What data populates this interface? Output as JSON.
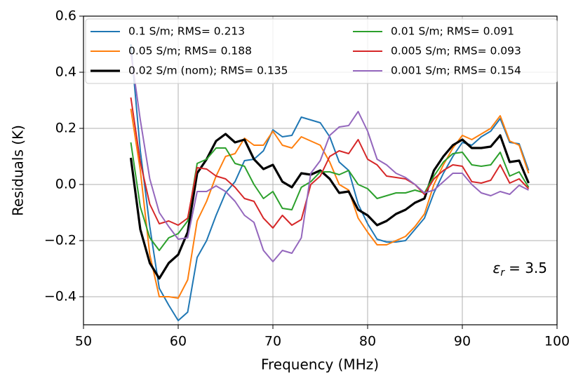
{
  "chart_data": {
    "type": "line",
    "xlabel": "Frequency (MHz)",
    "ylabel": "Residuals (K)",
    "annotation": {
      "symbol": "ε",
      "subscript": "r",
      "text": "= 3.5"
    },
    "xlim": [
      50,
      100
    ],
    "xticks": [
      50,
      60,
      70,
      80,
      90,
      100
    ],
    "ylim": [
      -0.5,
      0.6
    ],
    "yticks": [
      {
        "value": -0.4,
        "label": "−0.4"
      },
      {
        "value": -0.2,
        "label": "−0.2"
      },
      {
        "value": 0,
        "label": "0.0"
      },
      0.2,
      0.4,
      0.6
    ],
    "grid": true,
    "legend": "upper center",
    "x": [
      55,
      56,
      57,
      58,
      59,
      60,
      61,
      62,
      63,
      64,
      65,
      66,
      67,
      68,
      69,
      70,
      71,
      72,
      73,
      74,
      75,
      76,
      77,
      78,
      79,
      80,
      81,
      82,
      83,
      84,
      85,
      86,
      87,
      88,
      89,
      90,
      91,
      92,
      93,
      94,
      95,
      96,
      97
    ],
    "series": [
      {
        "name": "0.1 S/m; RMS= 0.213",
        "color": "#1f77b4",
        "linewidth": 2,
        "values": [
          0.5,
          0.12,
          -0.15,
          -0.37,
          -0.43,
          -0.485,
          -0.455,
          -0.26,
          -0.2,
          -0.11,
          -0.03,
          0.01,
          0.085,
          0.09,
          0.12,
          0.195,
          0.17,
          0.175,
          0.24,
          0.23,
          0.22,
          0.17,
          0.08,
          0.05,
          -0.07,
          -0.14,
          -0.195,
          -0.205,
          -0.205,
          -0.2,
          -0.16,
          -0.12,
          -0.03,
          0.04,
          0.1,
          0.15,
          0.14,
          0.17,
          0.19,
          0.235,
          0.15,
          0.145,
          0.05
        ]
      },
      {
        "name": "0.05 S/m; RMS= 0.188",
        "color": "#ff7f0e",
        "linewidth": 2,
        "values": [
          0.27,
          0.05,
          -0.25,
          -0.4,
          -0.4,
          -0.405,
          -0.34,
          -0.13,
          -0.06,
          0.03,
          0.1,
          0.11,
          0.165,
          0.14,
          0.14,
          0.19,
          0.14,
          0.13,
          0.17,
          0.155,
          0.14,
          0.08,
          0.0,
          -0.02,
          -0.12,
          -0.17,
          -0.215,
          -0.215,
          -0.2,
          -0.185,
          -0.15,
          -0.105,
          0.0,
          0.07,
          0.13,
          0.175,
          0.16,
          0.18,
          0.2,
          0.245,
          0.155,
          0.14,
          0.04
        ]
      },
      {
        "name": "0.02 S/m (nom); RMS= 0.135",
        "color": "#000000",
        "linewidth": 3.2,
        "values": [
          0.095,
          -0.16,
          -0.28,
          -0.335,
          -0.28,
          -0.25,
          -0.17,
          0.04,
          0.09,
          0.155,
          0.18,
          0.15,
          0.16,
          0.09,
          0.055,
          0.07,
          0.01,
          -0.01,
          0.04,
          0.035,
          0.05,
          0.02,
          -0.03,
          -0.025,
          -0.09,
          -0.11,
          -0.145,
          -0.13,
          -0.105,
          -0.09,
          -0.065,
          -0.05,
          0.05,
          0.1,
          0.14,
          0.16,
          0.13,
          0.13,
          0.135,
          0.175,
          0.08,
          0.085,
          0.005
        ]
      },
      {
        "name": "0.01 S/m; RMS= 0.091",
        "color": "#2ca02c",
        "linewidth": 2,
        "values": [
          0.15,
          -0.08,
          -0.19,
          -0.235,
          -0.19,
          -0.175,
          -0.13,
          0.075,
          0.09,
          0.13,
          0.13,
          0.075,
          0.065,
          0.0,
          -0.05,
          -0.025,
          -0.085,
          -0.09,
          -0.01,
          0.01,
          0.045,
          0.045,
          0.035,
          0.05,
          0.0,
          -0.015,
          -0.05,
          -0.04,
          -0.03,
          -0.03,
          -0.02,
          -0.03,
          0.03,
          0.08,
          0.11,
          0.115,
          0.07,
          0.065,
          0.07,
          0.115,
          0.03,
          0.045,
          -0.01
        ]
      },
      {
        "name": "0.005 S/m; RMS= 0.093",
        "color": "#d62728",
        "linewidth": 2,
        "values": [
          0.31,
          0.08,
          -0.07,
          -0.14,
          -0.13,
          -0.145,
          -0.12,
          0.06,
          0.055,
          0.03,
          0.02,
          -0.01,
          -0.05,
          -0.06,
          -0.12,
          -0.155,
          -0.11,
          -0.145,
          -0.125,
          0.0,
          0.03,
          0.1,
          0.12,
          0.11,
          0.16,
          0.09,
          0.07,
          0.03,
          0.025,
          0.02,
          0.0,
          -0.035,
          0.02,
          0.05,
          0.07,
          0.065,
          0.01,
          0.005,
          0.015,
          0.07,
          0.005,
          0.02,
          -0.015
        ]
      },
      {
        "name": "0.001 S/m; RMS= 0.154",
        "color": "#9467bd",
        "linewidth": 2,
        "values": [
          0.47,
          0.23,
          0.02,
          -0.1,
          -0.15,
          -0.195,
          -0.19,
          -0.025,
          -0.025,
          -0.005,
          -0.025,
          -0.06,
          -0.11,
          -0.135,
          -0.235,
          -0.275,
          -0.235,
          -0.245,
          -0.19,
          0.04,
          0.085,
          0.175,
          0.205,
          0.21,
          0.26,
          0.19,
          0.09,
          0.07,
          0.04,
          0.025,
          0.0,
          -0.03,
          -0.02,
          0.01,
          0.04,
          0.04,
          0.0,
          -0.03,
          -0.04,
          -0.025,
          -0.035,
          -0.003,
          -0.02
        ]
      }
    ]
  }
}
